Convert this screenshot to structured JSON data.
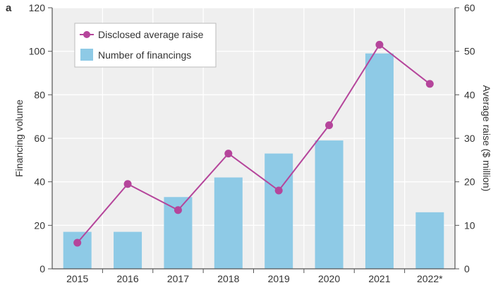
{
  "panel_label": "a",
  "chart_data": {
    "type": "bar+line",
    "categories": [
      "2015",
      "2016",
      "2017",
      "2018",
      "2019",
      "2020",
      "2021",
      "2022*"
    ],
    "series": [
      {
        "name": "Number of financings",
        "type": "bar",
        "axis": "left",
        "color": "#8ecae6",
        "values": [
          17,
          17,
          33,
          42,
          53,
          59,
          99,
          26
        ]
      },
      {
        "name": "Disclosed average raise",
        "type": "line",
        "axis": "right",
        "color": "#b5459b",
        "values": [
          6,
          19.5,
          13.5,
          26.5,
          18,
          33,
          51.5,
          42.5
        ]
      }
    ],
    "ylabel_left": "Financing volume",
    "ylabel_right": "Average raise ($ million)",
    "ylim_left": [
      0,
      120
    ],
    "yticks_left": [
      "0",
      "20",
      "40",
      "60",
      "80",
      "100",
      "120"
    ],
    "ylim_right": [
      0,
      60
    ],
    "yticks_right": [
      "0",
      "10",
      "20",
      "30",
      "40",
      "50",
      "60"
    ],
    "grid": true,
    "legend_position": "top-left",
    "background": "#efefef"
  }
}
